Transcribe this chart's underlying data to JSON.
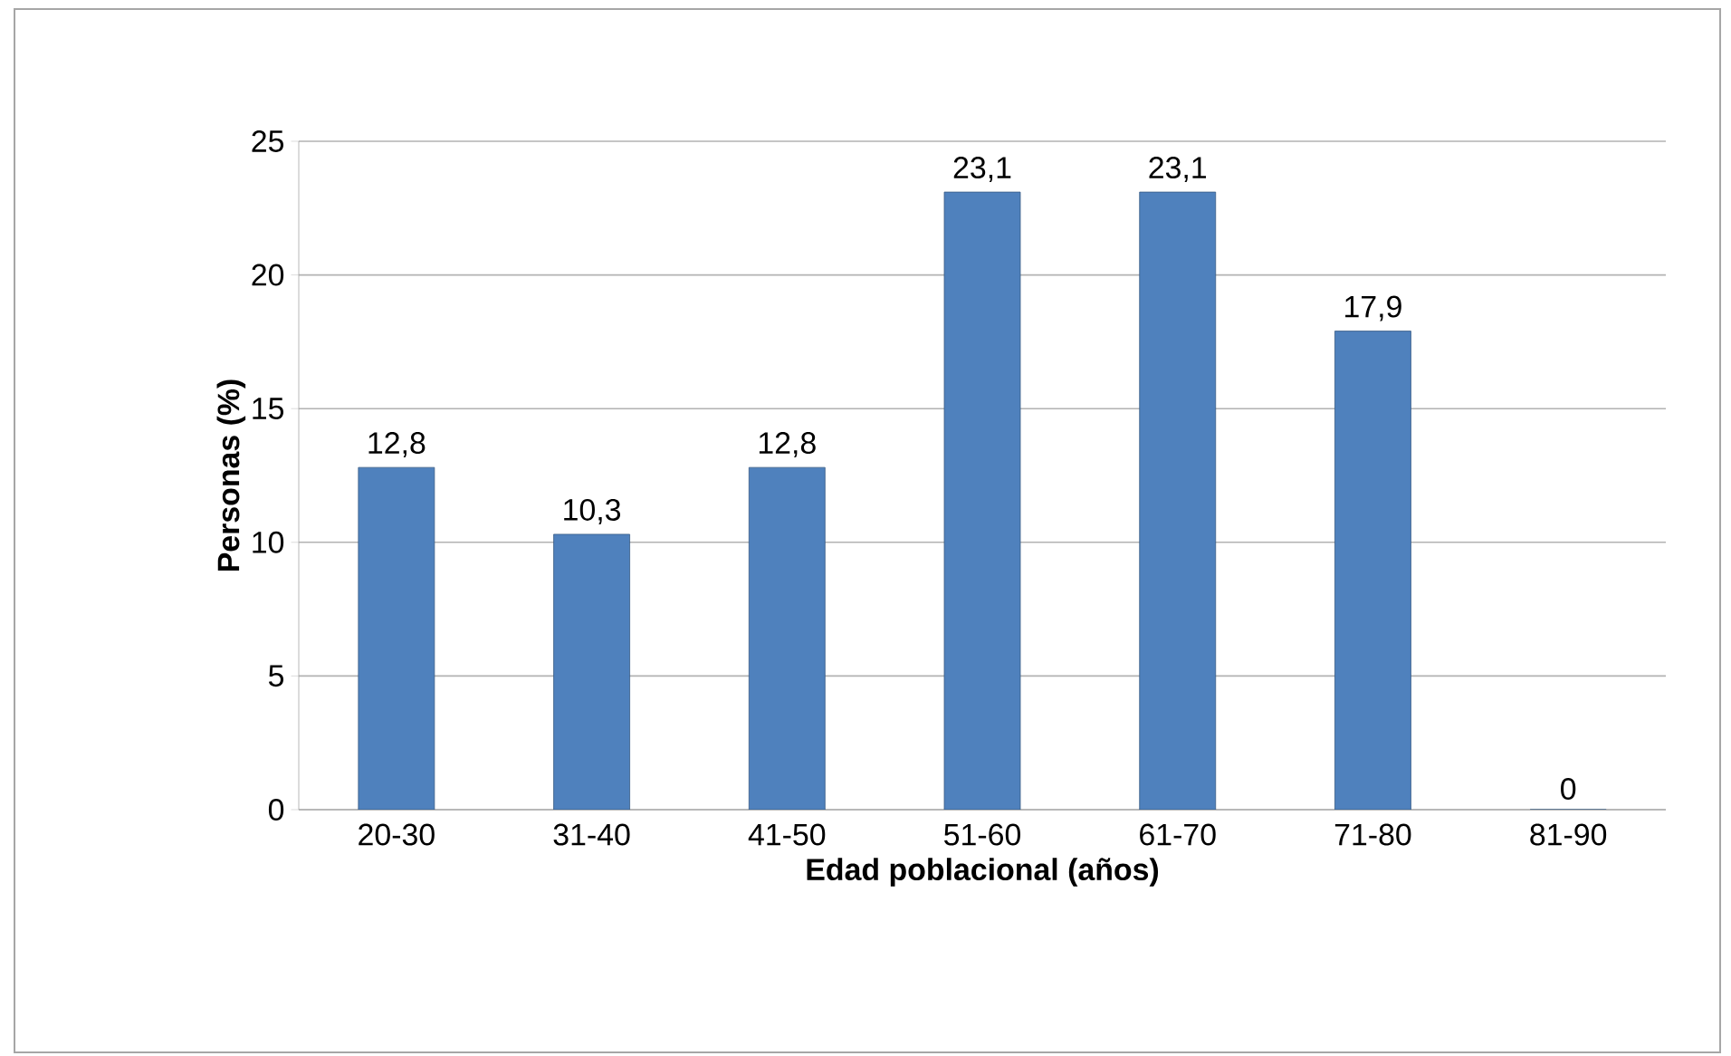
{
  "chart_data": {
    "type": "bar",
    "xlabel": "Edad  poblacional (años)",
    "ylabel": "Personas (%)",
    "categories": [
      "20-30",
      "31-40",
      "41-50",
      "51-60",
      "61-70",
      "71-80",
      "81-90"
    ],
    "values": [
      12.8,
      10.3,
      12.8,
      23.1,
      23.1,
      17.9,
      0
    ],
    "value_labels": [
      "12,8",
      "10,3",
      "12,8",
      "23,1",
      "23,1",
      "17,9",
      "0"
    ],
    "color": "#4f81bd",
    "ylim": [
      0,
      25
    ],
    "yticks": [
      0,
      5,
      10,
      15,
      20,
      25
    ],
    "grid": "y"
  }
}
